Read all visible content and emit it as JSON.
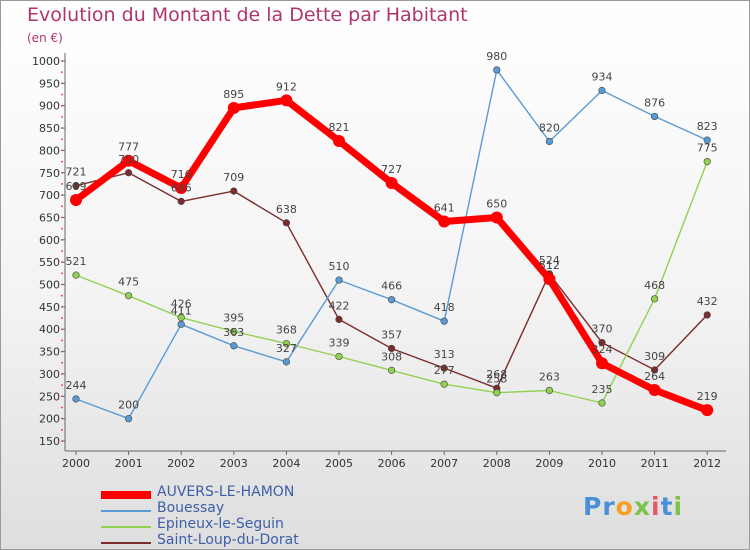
{
  "header": {
    "title": "Evolution du Montant de la Dette par Habitant",
    "subtitle": "(en €)"
  },
  "chart_data": {
    "type": "line",
    "title": "Evolution du Montant de la Dette par Habitant",
    "subtitle": "(en €)",
    "xlabel": "",
    "ylabel": "",
    "categories": [
      "2000",
      "2001",
      "2002",
      "2003",
      "2004",
      "2005",
      "2006",
      "2007",
      "2008",
      "2009",
      "2010",
      "2011",
      "2012"
    ],
    "ylim": [
      150,
      1000
    ],
    "yticks": [
      150,
      200,
      250,
      300,
      350,
      400,
      450,
      500,
      550,
      600,
      650,
      700,
      750,
      800,
      850,
      900,
      950,
      1000
    ],
    "grid": false,
    "legend_position": "bottom-left",
    "series": [
      {
        "name": "AUVERS-LE-HAMON",
        "color": "#ff0000",
        "values": [
          689,
          777,
          716,
          895,
          912,
          821,
          727,
          641,
          650,
          512,
          324,
          264,
          219
        ]
      },
      {
        "name": "Bouessay",
        "color": "#5b9bd5",
        "values": [
          244,
          200,
          411,
          363,
          327,
          510,
          466,
          418,
          980,
          820,
          934,
          876,
          823
        ]
      },
      {
        "name": "Epineux-le-Seguin",
        "color": "#92d050",
        "values": [
          521,
          475,
          426,
          395,
          368,
          339,
          308,
          277,
          258,
          263,
          235,
          468,
          775
        ]
      },
      {
        "name": "Saint-Loup-du-Dorat",
        "color": "#7b2c2c",
        "values": [
          721,
          750,
          686,
          709,
          638,
          422,
          357,
          313,
          268,
          524,
          370,
          309,
          432
        ]
      }
    ]
  },
  "brand": {
    "p1": "Pr",
    "p2": "o",
    "p3": "x",
    "p4": "i",
    "p5": "t",
    "p6": "i"
  }
}
